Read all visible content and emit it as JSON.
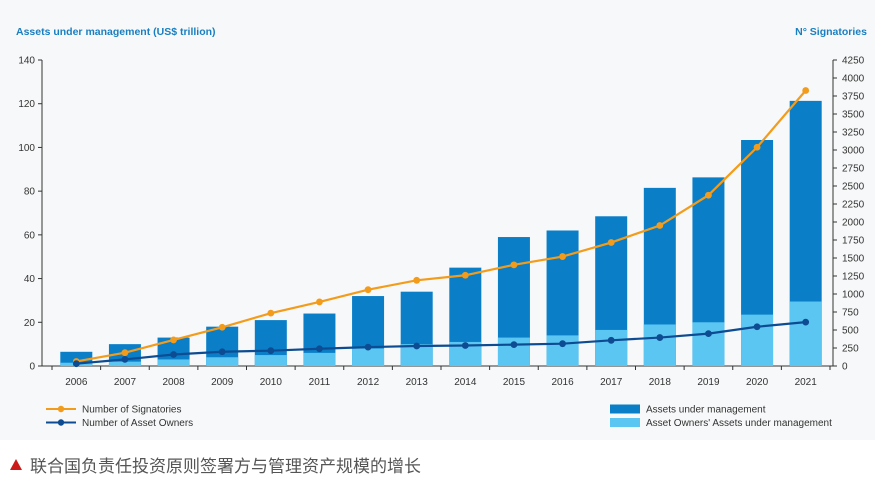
{
  "chart_data": {
    "type": "bar",
    "title_left": "Assets under management (US$ trillion)",
    "title_right": "N° Signatories",
    "categories": [
      "2006",
      "2007",
      "2008",
      "2009",
      "2010",
      "2011",
      "2012",
      "2013",
      "2014",
      "2015",
      "2016",
      "2017",
      "2018",
      "2019",
      "2020",
      "2021"
    ],
    "y_left": {
      "min": 0,
      "max": 140,
      "ticks": [
        0,
        20,
        40,
        60,
        80,
        100,
        120,
        140
      ]
    },
    "y_right": {
      "min": 0,
      "max": 4250,
      "ticks": [
        0,
        250,
        500,
        750,
        1000,
        1250,
        1500,
        1750,
        2000,
        2250,
        2500,
        2750,
        3000,
        3250,
        3500,
        3750,
        4000,
        4250
      ]
    },
    "bar_series": [
      {
        "name": "Assets under management",
        "color": "#0a7fc8",
        "values": [
          6.5,
          10,
          13,
          18,
          21,
          24,
          32,
          34,
          45,
          59,
          62,
          68.5,
          81.5,
          86.3,
          103.4,
          121.3
        ]
      },
      {
        "name": "Asset Owners' Assets under management",
        "color": "#5cc6f2",
        "values": [
          1.5,
          2,
          3,
          4,
          5,
          6,
          8,
          10,
          11,
          13,
          14,
          16.5,
          19,
          20,
          23.5,
          29.5
        ]
      }
    ],
    "line_series": [
      {
        "name": "Number of Signatories",
        "color": "#f39c1b",
        "axis": "right",
        "values": [
          63,
          185,
          362,
          538,
          734,
          890,
          1060,
          1190,
          1260,
          1405,
          1520,
          1715,
          1951,
          2372,
          3038,
          3826
        ]
      },
      {
        "name": "Number of Asset Owners",
        "color": "#0d4c92",
        "axis": "right",
        "values": [
          32,
          92,
          160,
          198,
          213,
          240,
          262,
          278,
          285,
          297,
          310,
          357,
          395,
          450,
          545,
          609
        ]
      }
    ],
    "legend": {
      "left": [
        "Number of Signatories",
        "Number of Asset Owners"
      ],
      "right": [
        "Assets under management",
        "Asset Owners' Assets under management"
      ]
    },
    "title_color": "#1a7fc0",
    "axis_color": "#333333"
  },
  "caption": {
    "text": "联合国负责任投资原则签署方与管理资产规模的增长",
    "marker_color": "#cc1a1a"
  }
}
